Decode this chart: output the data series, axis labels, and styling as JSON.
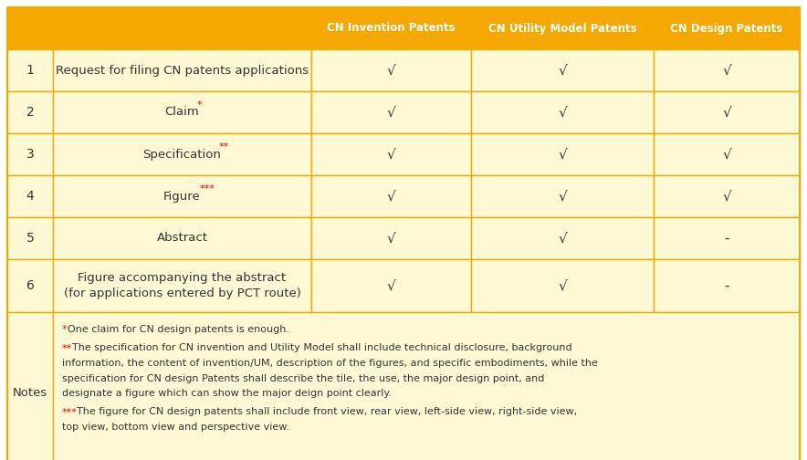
{
  "header_bg": "#F5A800",
  "header_text_color": "#FFFFFF",
  "row_bg": "#FFF9D6",
  "border_color": "#F5A800",
  "text_color": "#555555",
  "dark_text_color": "#333333",
  "red_color": "#FF0000",
  "header_cols": [
    "CN Invention Patents",
    "CN Utility Model Patents",
    "CN Design Patents"
  ],
  "rows": [
    {
      "num": "1",
      "label": "Request for filing CN patents applications",
      "star": "",
      "inv": "√",
      "util": "√",
      "design": "√"
    },
    {
      "num": "2",
      "label": "Claim",
      "star": "*",
      "inv": "√",
      "util": "√",
      "design": "√"
    },
    {
      "num": "3",
      "label": "Specification",
      "star": "**",
      "inv": "√",
      "util": "√",
      "design": "√"
    },
    {
      "num": "4",
      "label": "Figure",
      "star": "***",
      "inv": "√",
      "util": "√",
      "design": "√"
    },
    {
      "num": "5",
      "label": "Abstract",
      "star": "",
      "inv": "√",
      "util": "√",
      "design": "-"
    },
    {
      "num": "6",
      "label": "Figure accompanying the abstract\n(for applications entered by PCT route)",
      "star": "",
      "inv": "√",
      "util": "√",
      "design": "-"
    }
  ],
  "notes_label": "Notes",
  "notes": [
    {
      "prefix": "*",
      "body": "One claim for CN design patents is enough."
    },
    {
      "prefix": "**",
      "body": "The specification for CN invention and Utility Model shall include technical disclosure, background information, the content of invention/UM, description of the figures, and specific embodiments, while the specification for CN design Patents shall describe the tile, the use, the major design point, and designate a figure which can show the major deign point clearly."
    },
    {
      "prefix": "***",
      "body": "The figure for CN design patents shall include front view, rear view, left-side view, right-side view, top view, bottom view and perspective view."
    }
  ],
  "figsize": [
    8.84,
    5.04
  ],
  "dpi": 100
}
